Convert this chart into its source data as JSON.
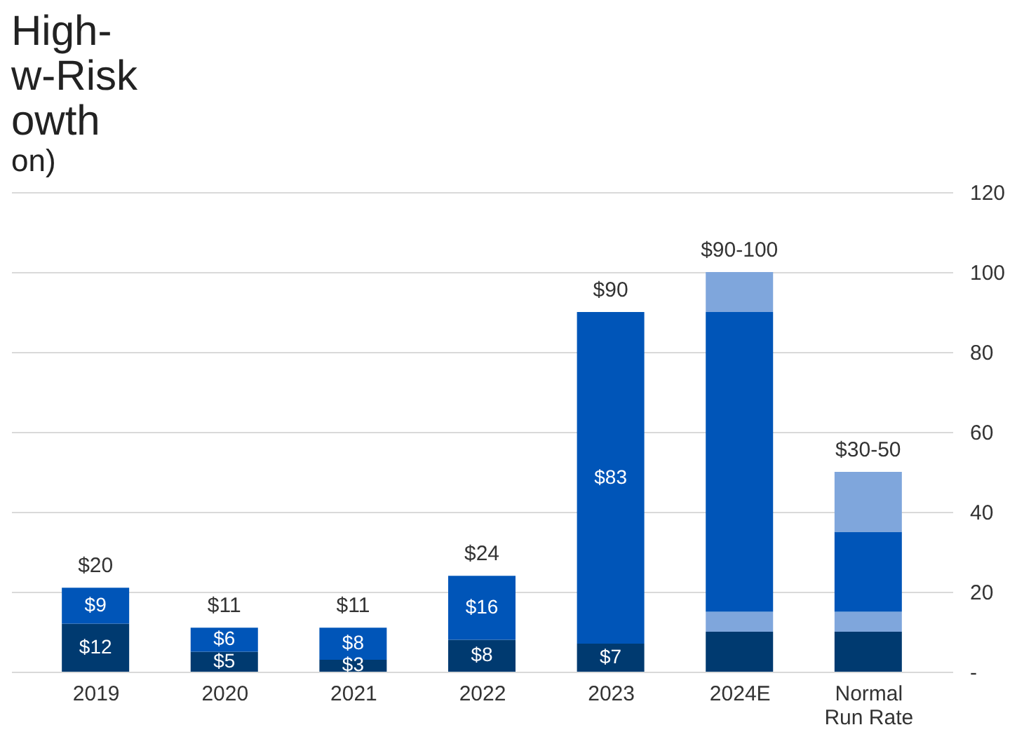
{
  "chart_data": {
    "type": "bar",
    "stacked": true,
    "title": "High-\nw-Risk\nowth",
    "subtitle": "on)",
    "categories": [
      "2019",
      "2020",
      "2021",
      "2022",
      "2023",
      "2024E",
      "Normal\nRun Rate"
    ],
    "series": [
      {
        "color": "#003a70",
        "values": [
          12,
          5,
          3,
          8,
          7,
          10,
          10
        ],
        "value_labels": [
          "$12",
          "$5",
          "$3",
          "$8",
          "$7",
          null,
          null
        ]
      },
      {
        "color": "#7fa6dc",
        "values": [
          null,
          null,
          null,
          null,
          null,
          5,
          5
        ]
      },
      {
        "color": "#0055b8",
        "values": [
          9,
          6,
          8,
          16,
          83,
          75,
          20
        ],
        "value_labels": [
          "$9",
          "$6",
          "$8",
          "$16",
          "$83",
          null,
          null
        ]
      },
      {
        "color": "#7fa6dc",
        "values": [
          null,
          null,
          null,
          null,
          null,
          10,
          15
        ]
      }
    ],
    "totals": [
      "$20",
      "$11",
      "$11",
      "$24",
      "$90",
      "$90-100",
      "$30-50"
    ],
    "ylim": [
      0,
      120
    ],
    "yticks": [
      {
        "value": 0,
        "label": "-"
      },
      20,
      40,
      60,
      80,
      100,
      120
    ],
    "grid": "y"
  }
}
